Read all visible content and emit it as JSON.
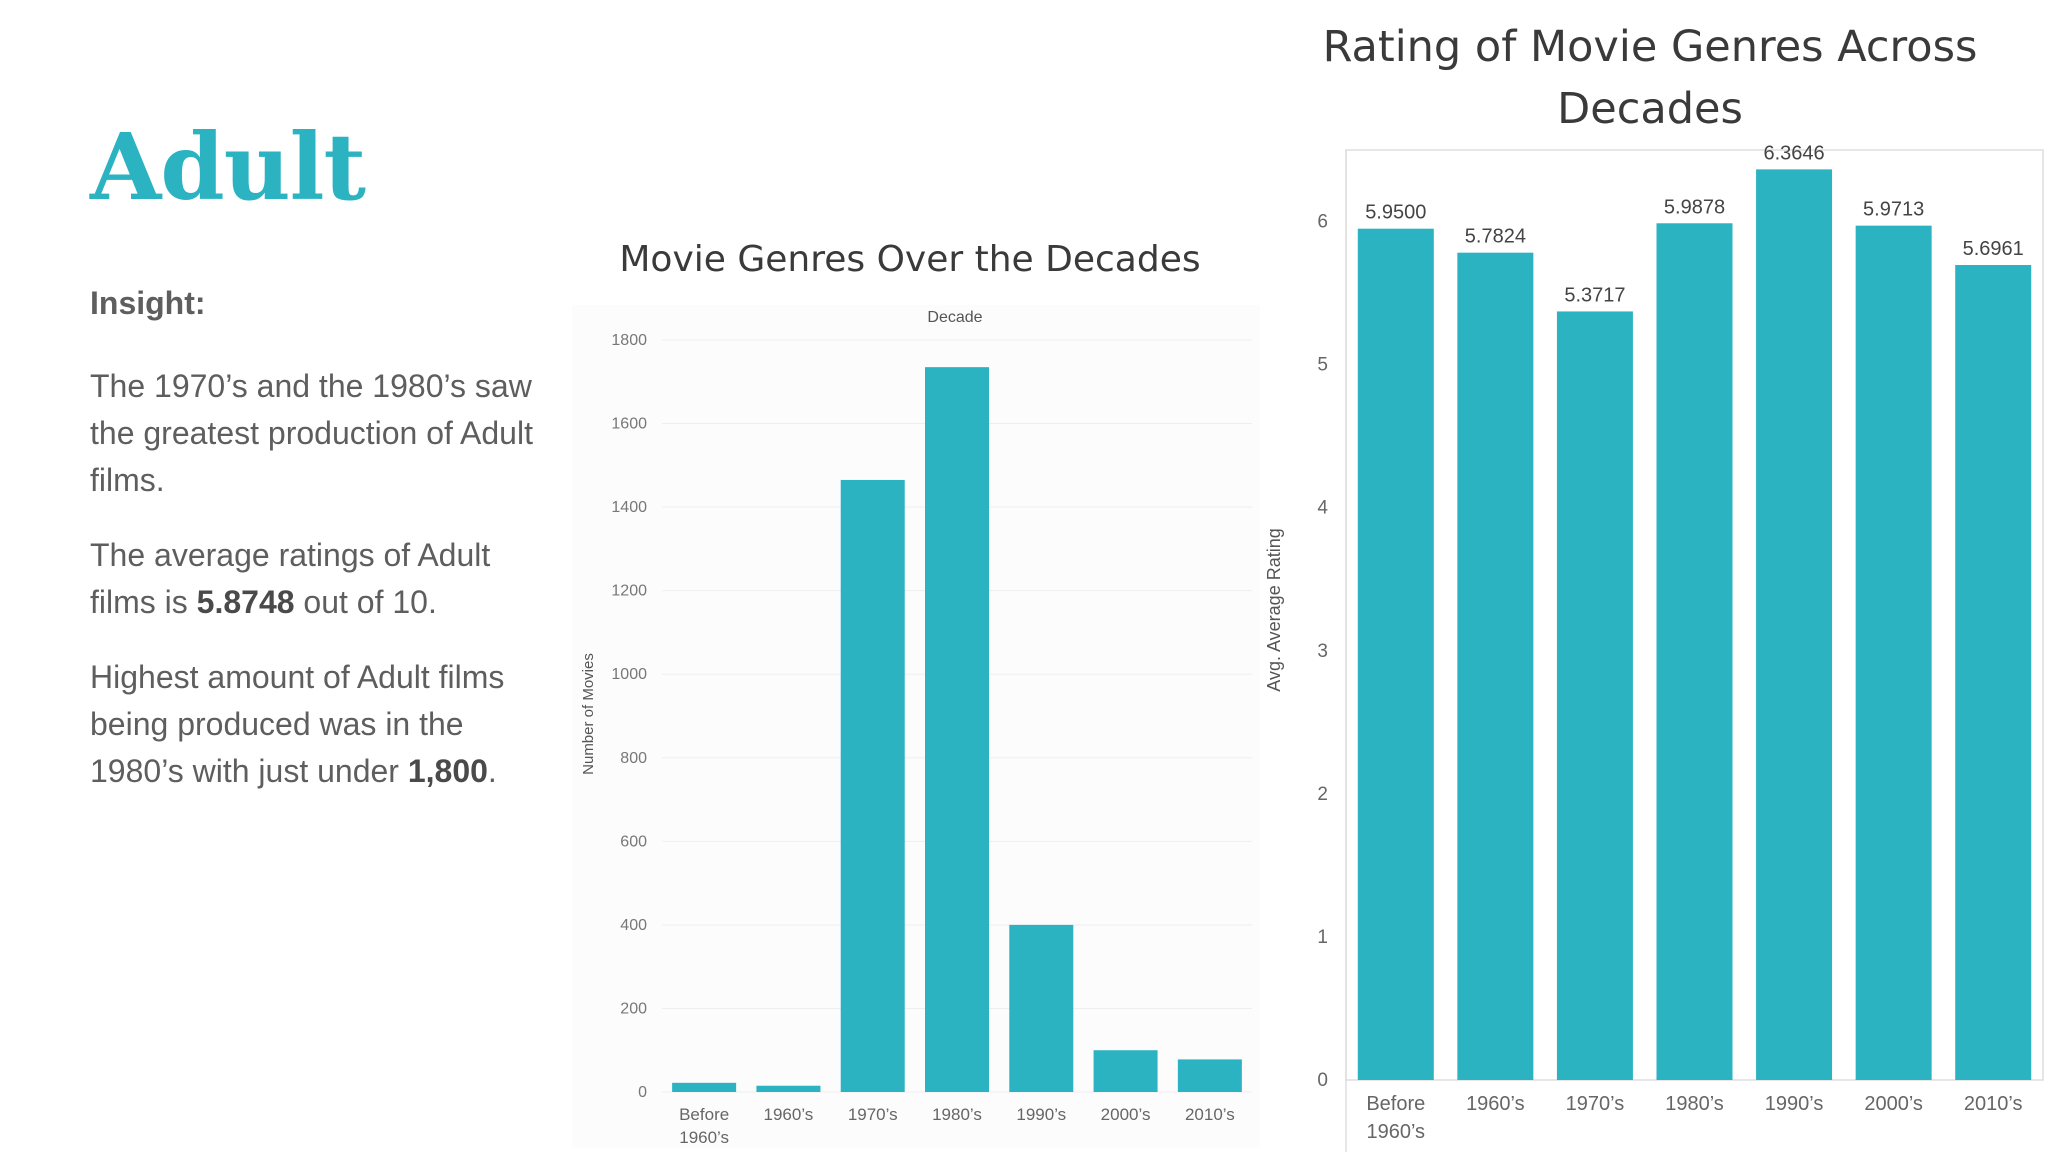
{
  "page": {
    "genre": "Adult",
    "insight": {
      "heading": "Insight:",
      "p1": "The 1970’s and the 1980’s saw the greatest production of Adult films.",
      "p2_pre": "The average ratings of Adult films is ",
      "p2_bold": "5.8748",
      "p2_post": " out of 10.",
      "p3_pre": "Highest amount of Adult films being produced was in the 1980’s with just under ",
      "p3_bold": "1,800",
      "p3_post": "."
    }
  },
  "colors": {
    "accent": "#2bb3c2",
    "text": "#5e5e5e",
    "axis_text": "#666666"
  },
  "chart_data": [
    {
      "type": "bar",
      "title": "Movie Genres Over the Decades",
      "xlabel": "Decade",
      "ylabel": "Number of Movies",
      "categories": [
        "Before 1960’s",
        "1960’s",
        "1970’s",
        "1980’s",
        "1990’s",
        "2000’s",
        "2010’s"
      ],
      "values": [
        22,
        15,
        1465,
        1735,
        400,
        100,
        78
      ],
      "yticks": [
        0,
        200,
        400,
        600,
        800,
        1000,
        1200,
        1400,
        1600,
        1800
      ],
      "ylim": [
        0,
        1800
      ],
      "grid": true,
      "color": "#2bb3c2"
    },
    {
      "type": "bar",
      "title": "Rating of Movie Genres Across Decades",
      "xlabel": "",
      "ylabel": "Avg. Average Rating",
      "categories": [
        "Before 1960’s",
        "1960’s",
        "1970’s",
        "1980’s",
        "1990’s",
        "2000’s",
        "2010’s"
      ],
      "values": [
        5.95,
        5.7824,
        5.3717,
        5.9878,
        6.3646,
        5.9713,
        5.6961
      ],
      "labels": [
        "5.9500",
        "5.7824",
        "5.3717",
        "5.9878",
        "6.3646",
        "5.9713",
        "5.6961"
      ],
      "yticks": [
        0,
        1,
        2,
        3,
        4,
        5,
        6
      ],
      "ylim": [
        0,
        6.5
      ],
      "grid": false,
      "color": "#2bb3c2"
    }
  ]
}
